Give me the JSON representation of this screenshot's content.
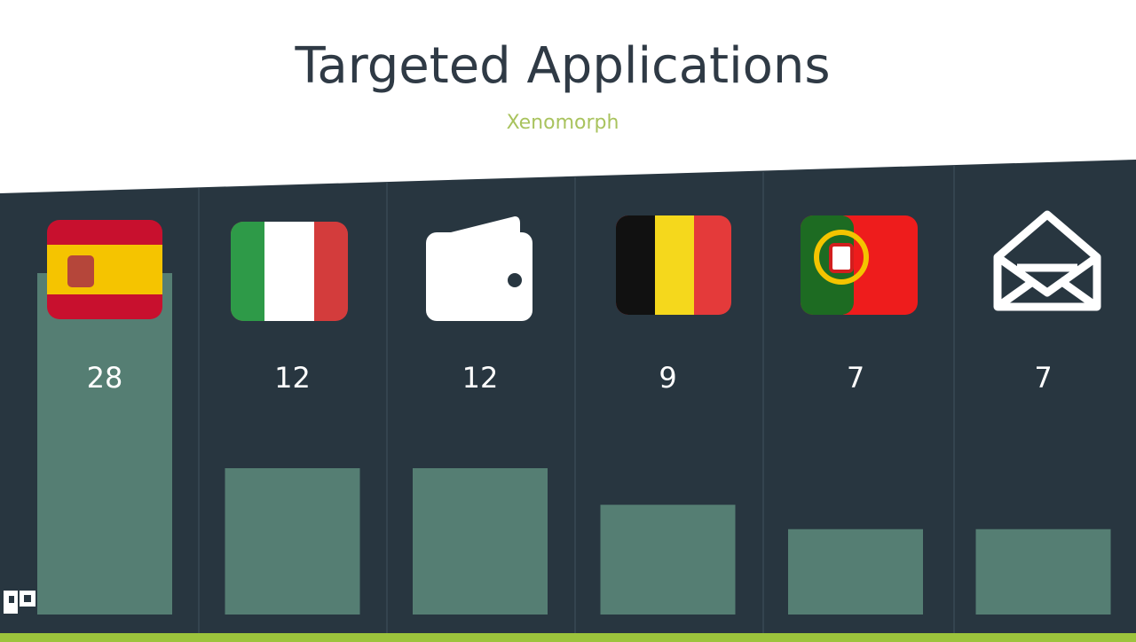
{
  "chart_data": {
    "type": "bar",
    "title": "Targeted Applications",
    "subtitle": "Xenomorph",
    "categories": [
      null,
      null,
      null,
      null,
      null,
      null
    ],
    "values": [
      28,
      12,
      12,
      9,
      7,
      7
    ],
    "color": "#557e73"
  }
}
